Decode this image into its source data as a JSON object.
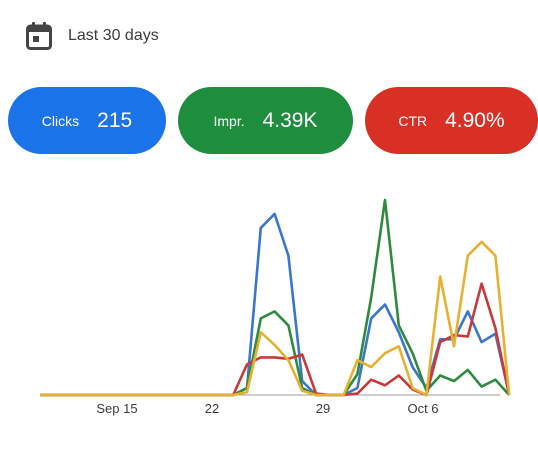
{
  "date_range": {
    "label": "Last 30 days",
    "icon": "calendar-icon"
  },
  "metrics": [
    {
      "key": "clicks",
      "label": "Clicks",
      "value": "215",
      "color": "#1a73e8"
    },
    {
      "key": "impr",
      "label": "Impr.",
      "value": "4.39K",
      "color": "#1e8e3e"
    },
    {
      "key": "ctr",
      "label": "CTR",
      "value": "4.90%",
      "color": "#d93025"
    }
  ],
  "chart_data": {
    "type": "line",
    "x_tick_labels": [
      "Sep 15",
      "22",
      "29",
      "Oct 6"
    ],
    "series": [
      {
        "key": "clicks",
        "color": "#3a76c9",
        "values": [
          0,
          0,
          0,
          0,
          0,
          0,
          0,
          0,
          0,
          0,
          0,
          0,
          0,
          0,
          0,
          5,
          120,
          130,
          100,
          10,
          0,
          0,
          0,
          5,
          55,
          65,
          45,
          20,
          5,
          40,
          40,
          60,
          38,
          44,
          0
        ]
      },
      {
        "key": "impr",
        "color": "#2e8b3e",
        "values": [
          0,
          0,
          0,
          0,
          0,
          0,
          0,
          0,
          0,
          0,
          0,
          0,
          0,
          0,
          0,
          5,
          55,
          60,
          50,
          5,
          0,
          0,
          0,
          15,
          70,
          140,
          50,
          30,
          3,
          14,
          10,
          18,
          6,
          11,
          0
        ]
      },
      {
        "key": "ctr",
        "color": "#c9393a",
        "values": [
          0,
          0,
          0,
          0,
          0,
          0,
          0,
          0,
          0,
          0,
          0,
          0,
          0,
          0,
          0,
          22,
          27,
          27,
          26,
          29,
          1,
          0,
          0,
          1,
          11,
          7,
          14,
          4,
          0,
          38,
          43,
          42,
          80,
          48,
          0
        ]
      },
      {
        "key": "position",
        "color": "#e8b030",
        "values": [
          0,
          0,
          0,
          0,
          0,
          0,
          0,
          0,
          0,
          0,
          0,
          0,
          0,
          0,
          0,
          2,
          45,
          36,
          25,
          3,
          0,
          0,
          0,
          25,
          20,
          30,
          35,
          5,
          0,
          85,
          35,
          100,
          110,
          100,
          0
        ]
      }
    ],
    "ymax": 140,
    "grid": false,
    "legend": "none"
  }
}
